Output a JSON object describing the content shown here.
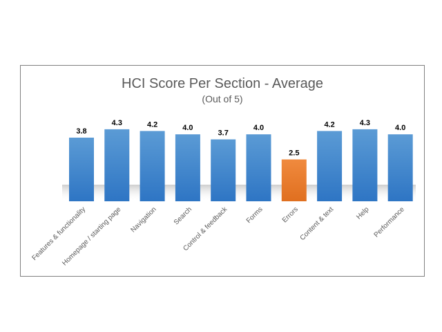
{
  "chart_data": {
    "type": "bar",
    "title": "HCI Score Per Section - Average",
    "subtitle": "(Out of 5)",
    "categories": [
      "Features & functionality",
      "Homepage / starting page",
      "Navigation",
      "Search",
      "Control & feedback",
      "Forms",
      "Errors",
      "Content & text",
      "Help",
      "Performance"
    ],
    "values": [
      3.8,
      4.3,
      4.2,
      4.0,
      3.7,
      4.0,
      2.5,
      4.2,
      4.3,
      4.0
    ],
    "data_labels": [
      "3.8",
      "4.3",
      "4.2",
      "4.0",
      "3.7",
      "4.0",
      "2.5",
      "4.2",
      "4.3",
      "4.0"
    ],
    "ylim": [
      0,
      5
    ],
    "grid": false,
    "legend": "none",
    "colors": {
      "default_bar": "#4a8fd6",
      "highlight_bar": "#ed7d31",
      "highlight_category": "Errors"
    }
  }
}
